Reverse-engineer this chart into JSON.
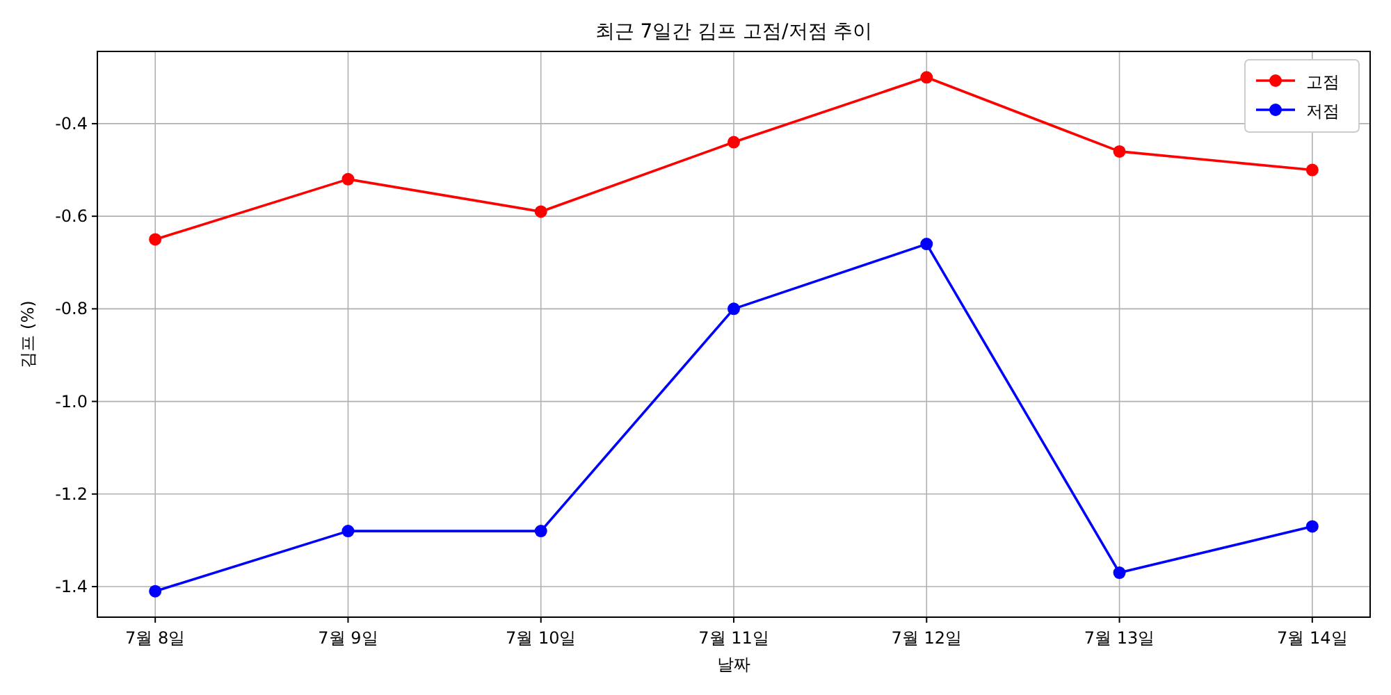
{
  "chart_data": {
    "type": "line",
    "title": "최근 7일간 김프 고점/저점 추이",
    "xlabel": "날짜",
    "ylabel": "김프 (%)",
    "categories": [
      "7월 8일",
      "7월 9일",
      "7월 10일",
      "7월 11일",
      "7월 12일",
      "7월 13일",
      "7월 14일"
    ],
    "series": [
      {
        "name": "고점",
        "color": "#ff0000",
        "values": [
          -0.65,
          -0.52,
          -0.59,
          -0.44,
          -0.3,
          -0.46,
          -0.5
        ]
      },
      {
        "name": "저점",
        "color": "#0000ff",
        "values": [
          -1.41,
          -1.28,
          -1.28,
          -0.8,
          -0.66,
          -1.37,
          -1.27
        ]
      }
    ],
    "ylim": [
      -1.466,
      -0.244
    ],
    "yticks": [
      {
        "value": -1.4,
        "label": "-1.4"
      },
      {
        "value": -1.2,
        "label": "-1.2"
      },
      {
        "value": -1.0,
        "label": "-1.0"
      },
      {
        "value": -0.8,
        "label": "-0.8"
      },
      {
        "value": -0.6,
        "label": "-0.6"
      },
      {
        "value": -0.4,
        "label": "-0.4"
      }
    ],
    "grid": true,
    "legend": "top right",
    "marker": "circle",
    "line_style": "solid"
  }
}
